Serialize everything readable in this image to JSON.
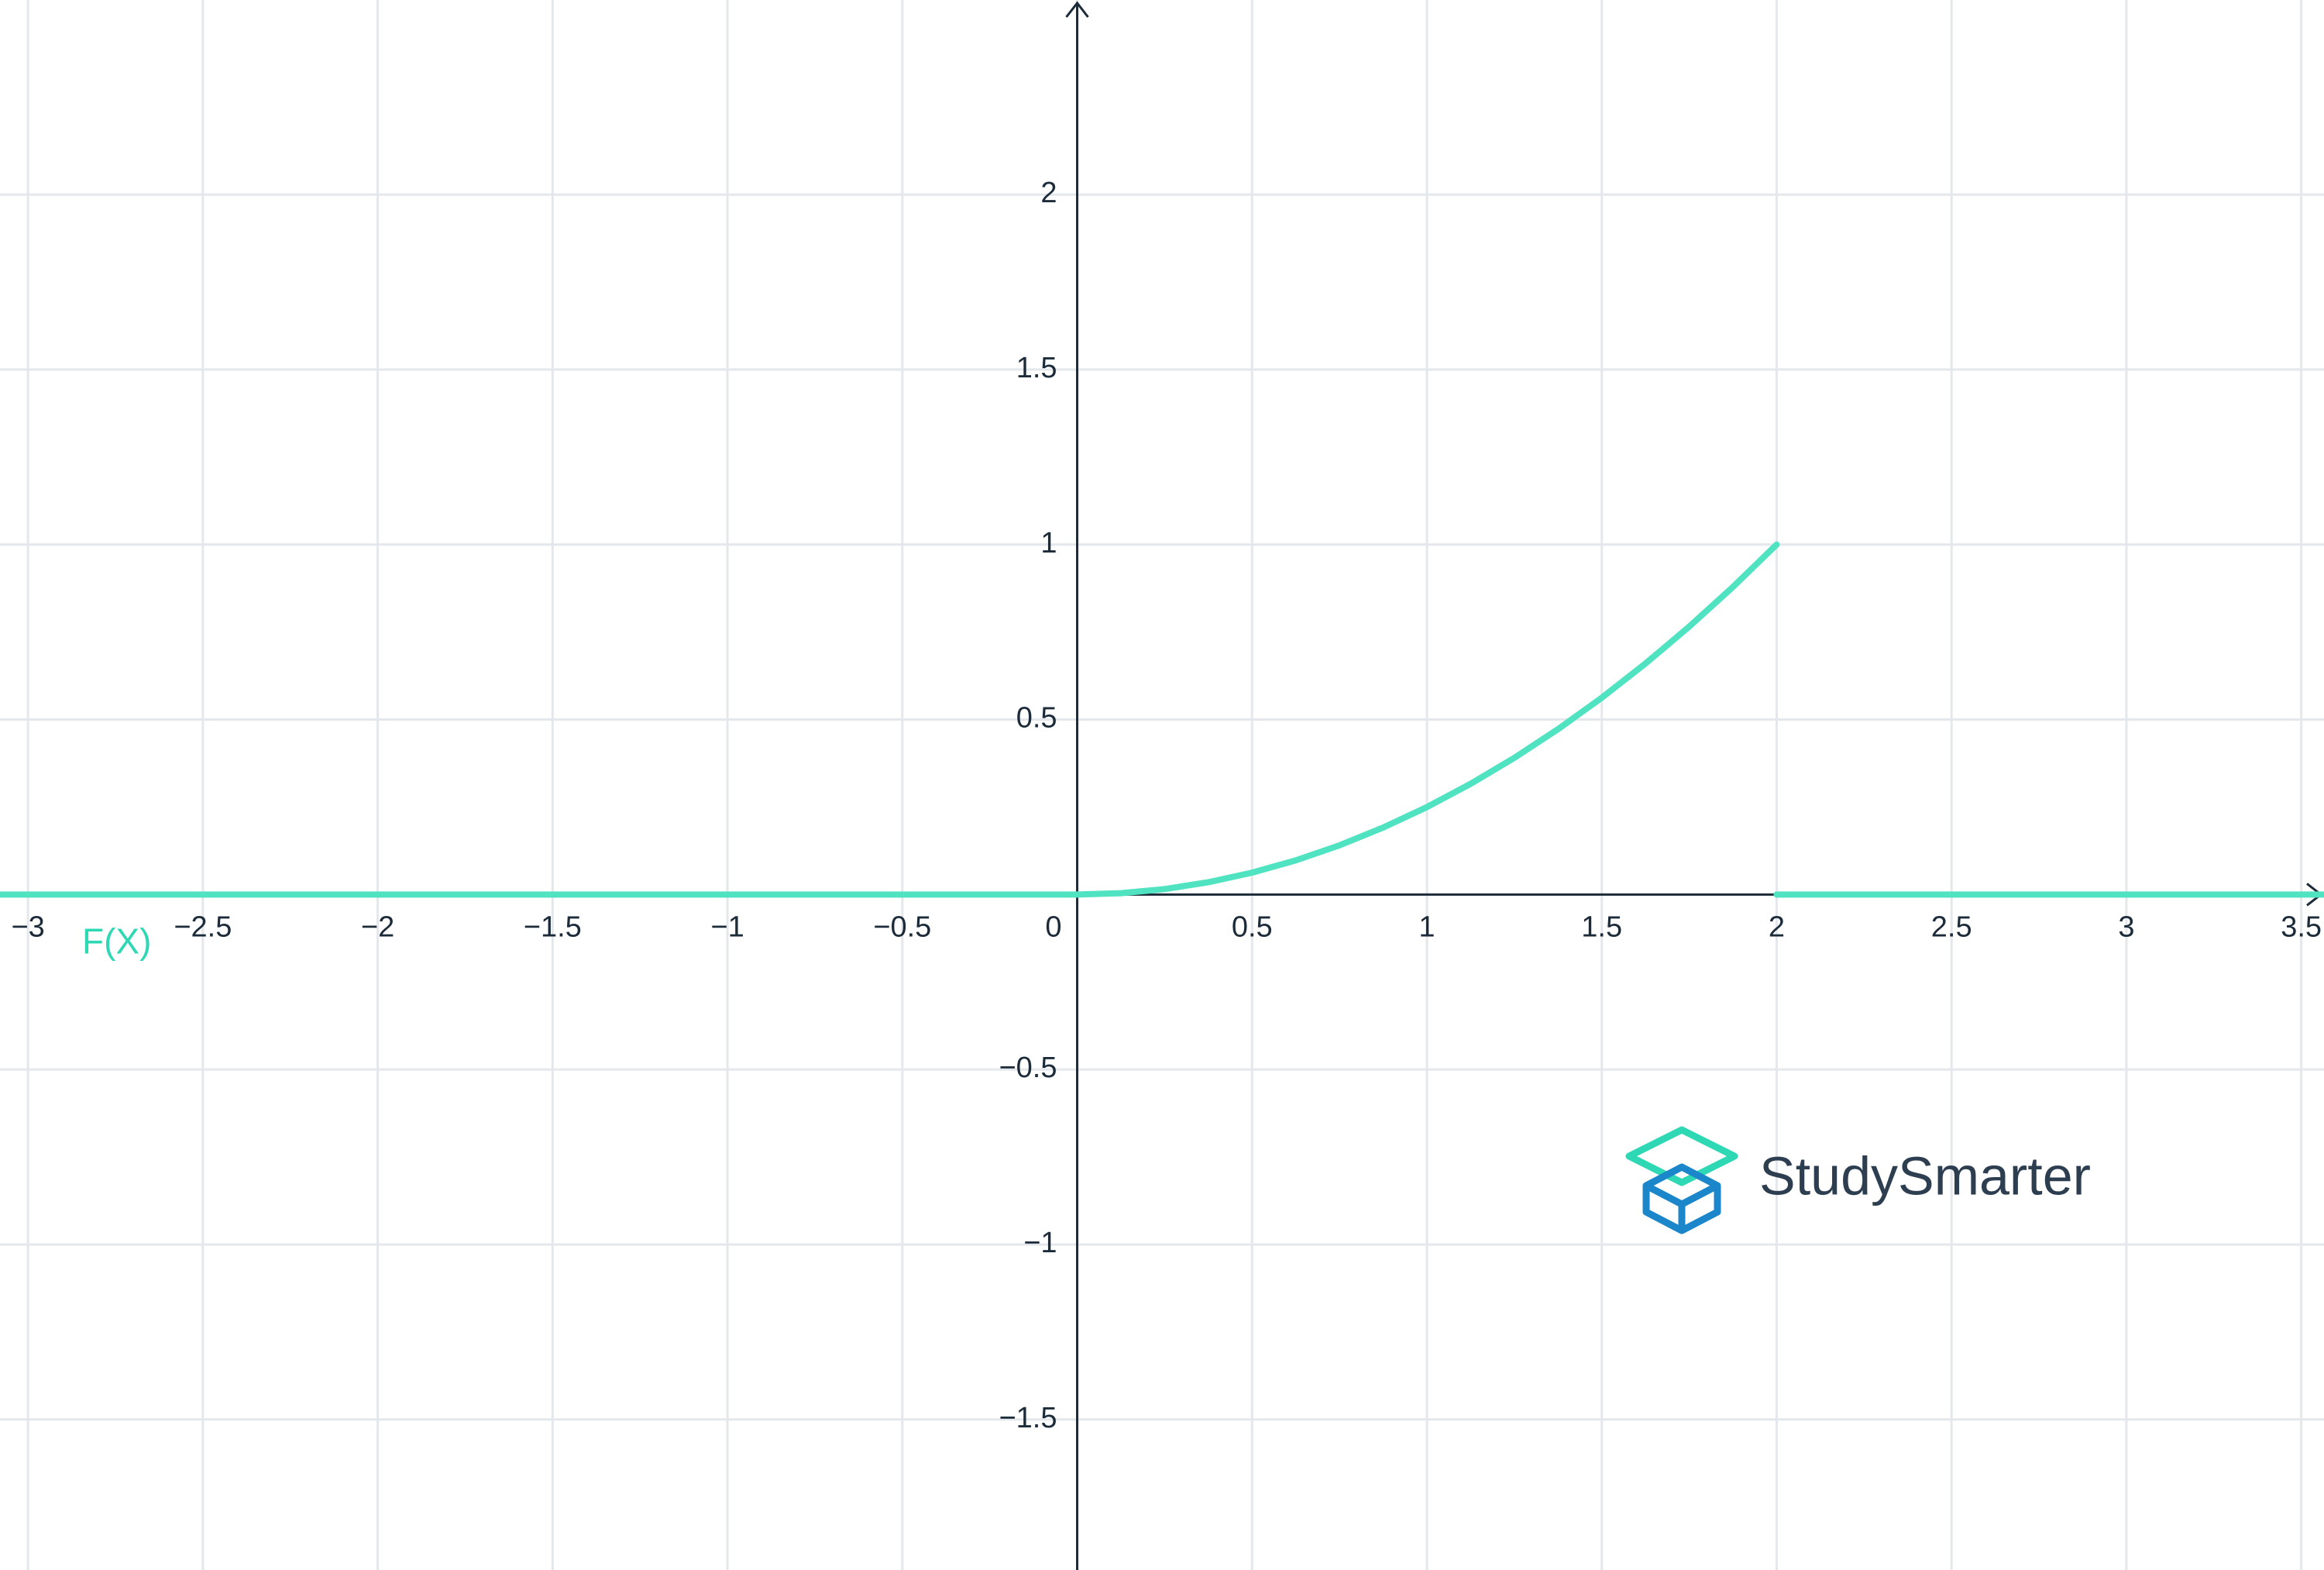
{
  "chart_data": {
    "type": "line",
    "x": [
      -3.08,
      0,
      0.125,
      0.25,
      0.375,
      0.5,
      0.625,
      0.75,
      0.875,
      1,
      1.125,
      1.25,
      1.375,
      1.5,
      1.625,
      1.75,
      1.875,
      2,
      2,
      2,
      3.565
    ],
    "series": [
      {
        "name": "F(X)",
        "color": "#50e3c2",
        "values": [
          0,
          0,
          0.00390625,
          0.015625,
          0.03515625,
          0.0625,
          0.09765625,
          0.140625,
          0.19140625,
          0.25,
          0.31640625,
          0.390625,
          0.47265625,
          0.5625,
          0.66015625,
          0.765625,
          0.87890625,
          1,
          null,
          0,
          0
        ]
      }
    ],
    "xlim": [
      -3.08,
      3.565
    ],
    "ylim": [
      -1.93,
      2.556
    ],
    "xticks": [
      {
        "value": -3,
        "label": "−3"
      },
      {
        "value": -2.5,
        "label": "−2.5"
      },
      {
        "value": -2,
        "label": "−2"
      },
      {
        "value": -1.5,
        "label": "−1.5"
      },
      {
        "value": -1,
        "label": "−1"
      },
      {
        "value": -0.5,
        "label": "−0.5"
      },
      0,
      0.5,
      1,
      1.5,
      2,
      2.5,
      3,
      3.5
    ],
    "yticks": [
      {
        "value": -1.5,
        "label": "−1.5"
      },
      {
        "value": -1,
        "label": "−1"
      },
      {
        "value": -0.5,
        "label": "−0.5"
      },
      0.5,
      1,
      1.5,
      2
    ],
    "grid": true,
    "label_color": "#2fd8b4",
    "watermark": "StudySmarter"
  }
}
